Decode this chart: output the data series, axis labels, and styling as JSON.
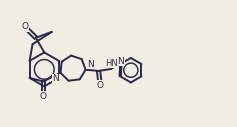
{
  "background_color": "#f2ede3",
  "line_color": "#2a2a4a",
  "line_width": 1.4,
  "font_size": 6.5,
  "figsize": [
    2.37,
    1.27
  ],
  "dpi": 100,
  "xlim": [
    0.0,
    10.0
  ],
  "ylim": [
    0.0,
    5.2
  ]
}
